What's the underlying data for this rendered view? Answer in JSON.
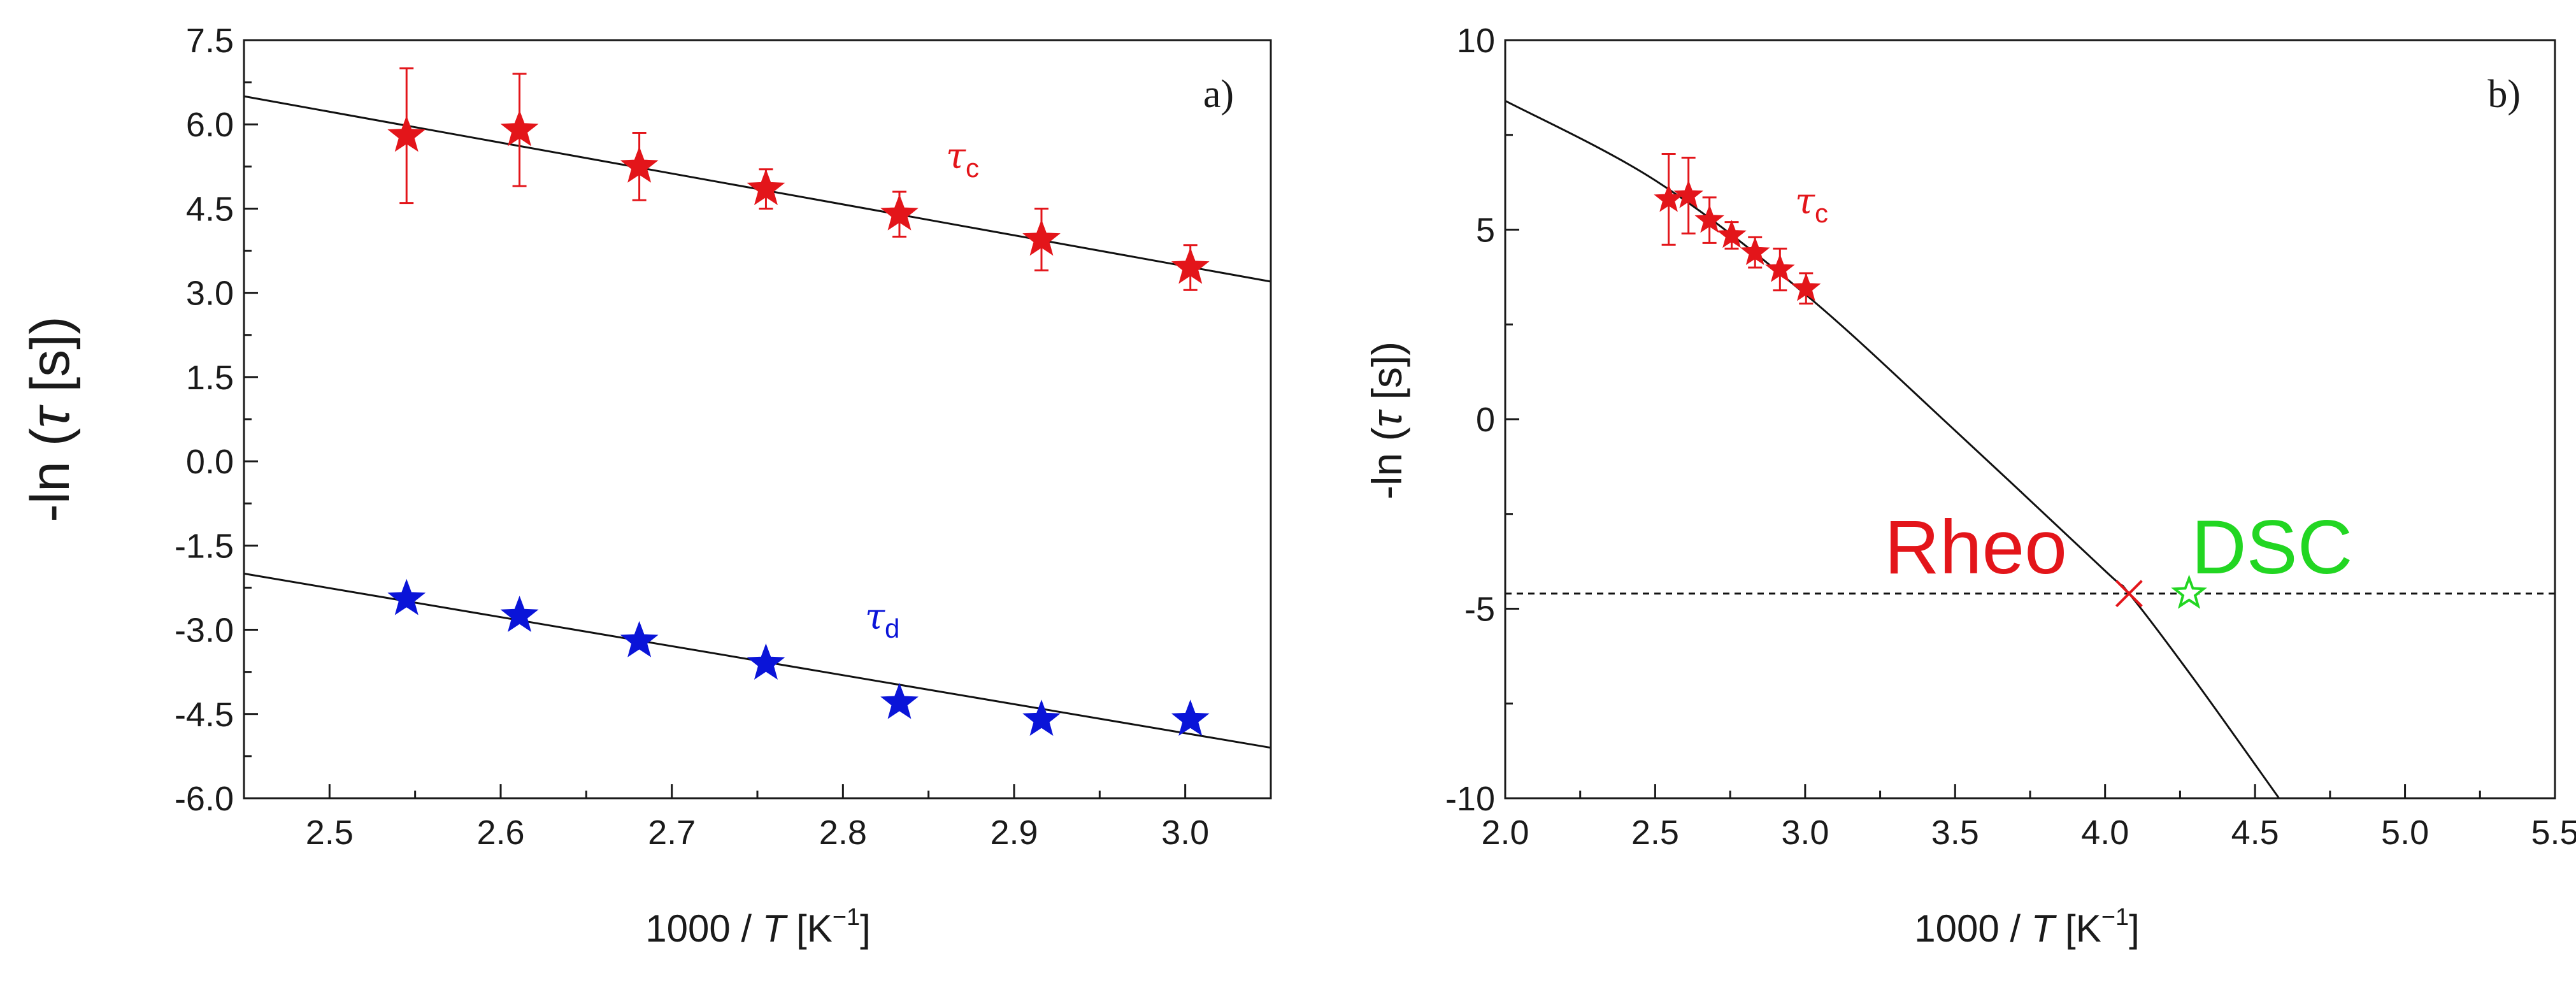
{
  "colors": {
    "tau_c": "#e3151a",
    "tau_d": "#0a14d8",
    "dsc": "#22d622",
    "axis": "#1a1a1a",
    "fit": "#111111"
  },
  "chart_data": [
    {
      "type": "scatter",
      "panel_label": "a)",
      "xlabel": {
        "prefix": "1000 / ",
        "var": "T",
        "unit_open": " [K",
        "unit_sup": "−1",
        "unit_close": "]"
      },
      "ylabel": {
        "prefix": "-ln (",
        "var": "τ",
        "suffix": " [s])"
      },
      "xlim": [
        2.45,
        3.05
      ],
      "ylim": [
        -6.0,
        7.5
      ],
      "xticks": [
        "2.5",
        "2.6",
        "2.7",
        "2.8",
        "2.9",
        "3.0"
      ],
      "yticks": [
        "-6.0",
        "-4.5",
        "-3.0",
        "-1.5",
        "0.0",
        "1.5",
        "3.0",
        "4.5",
        "6.0",
        "7.5"
      ],
      "series": [
        {
          "name": "τc",
          "label_main": "τ",
          "label_sub": "c",
          "marker": "filled-star",
          "color_key": "tau_c",
          "x": [
            2.545,
            2.611,
            2.681,
            2.755,
            2.833,
            2.916,
            3.003
          ],
          "y": [
            5.8,
            5.9,
            5.25,
            4.85,
            4.4,
            3.95,
            3.45
          ],
          "err": [
            1.2,
            1.0,
            0.6,
            0.35,
            0.4,
            0.55,
            0.4
          ],
          "fit": {
            "x": [
              2.45,
              3.05
            ],
            "y": [
              6.5,
              3.2
            ]
          }
        },
        {
          "name": "τd",
          "label_main": "τ",
          "label_sub": "d",
          "marker": "filled-star",
          "color_key": "tau_d",
          "x": [
            2.545,
            2.611,
            2.681,
            2.755,
            2.833,
            2.916,
            3.003
          ],
          "y": [
            -2.45,
            -2.75,
            -3.2,
            -3.6,
            -4.3,
            -4.6,
            -4.6
          ],
          "err": [],
          "fit": {
            "x": [
              2.45,
              3.05
            ],
            "y": [
              -2.0,
              -5.1
            ]
          }
        }
      ]
    },
    {
      "type": "scatter",
      "panel_label": "b)",
      "xlabel": {
        "prefix": "1000 / ",
        "var": "T",
        "unit_open": " [K",
        "unit_sup": "−1",
        "unit_close": "]"
      },
      "ylabel": {
        "prefix": "-ln (",
        "var": "τ",
        "suffix": " [s])"
      },
      "xlim": [
        2.0,
        5.5
      ],
      "ylim": [
        -10,
        10
      ],
      "xticks": [
        "2.0",
        "2.5",
        "3.0",
        "3.5",
        "4.0",
        "4.5",
        "5.0",
        "5.5"
      ],
      "yticks": [
        "-10",
        "-5",
        "0",
        "5",
        "10"
      ],
      "series": [
        {
          "name": "τc",
          "label_main": "τ",
          "label_sub": "c",
          "marker": "filled-star",
          "color_key": "tau_c",
          "x": [
            2.545,
            2.611,
            2.681,
            2.755,
            2.833,
            2.916,
            3.003
          ],
          "y": [
            5.8,
            5.9,
            5.25,
            4.85,
            4.4,
            3.95,
            3.45
          ],
          "err": [
            1.2,
            1.0,
            0.6,
            0.35,
            0.4,
            0.55,
            0.4
          ]
        }
      ],
      "fit_curve": {
        "x": [
          2.0,
          2.5,
          3.0,
          3.5,
          4.0,
          4.08,
          4.3,
          4.58
        ],
        "y": [
          8.4,
          6.3,
          3.3,
          -0.3,
          -4.0,
          -4.6,
          -6.9,
          -10.0
        ]
      },
      "reference_line": {
        "y": -4.6,
        "style": "dashed"
      },
      "points": [
        {
          "name": "Rheo",
          "label": "Rheo",
          "x": 4.08,
          "y": -4.6,
          "marker": "x",
          "color_key": "tau_c"
        },
        {
          "name": "DSC",
          "label": "DSC",
          "x": 4.28,
          "y": -4.6,
          "marker": "open-star",
          "color_key": "dsc"
        }
      ]
    }
  ]
}
